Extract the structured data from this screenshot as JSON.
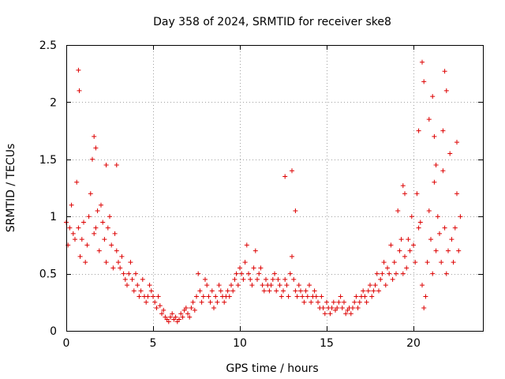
{
  "chart_data": {
    "type": "scatter",
    "title": "Day 358 of 2024, SRMTID for receiver ske8",
    "xlabel": "GPS time / hours",
    "ylabel": "SRMTID / TECUs",
    "xlim": [
      0,
      24
    ],
    "ylim": [
      0,
      2.5
    ],
    "xticks": [
      0,
      5,
      10,
      15,
      20
    ],
    "xtick_labels": [
      "0",
      "5",
      "10",
      "15",
      "20"
    ],
    "yticks": [
      0,
      0.5,
      1,
      1.5,
      2,
      2.5
    ],
    "ytick_labels": [
      "0",
      "0.5",
      "1",
      "1.5",
      "2",
      "2.5"
    ],
    "grid": true,
    "marker": "+",
    "color": "#dd0000",
    "series": [
      {
        "name": "SRMTID",
        "x": [
          0.0,
          0.1,
          0.2,
          0.3,
          0.4,
          0.5,
          0.6,
          0.7,
          0.8,
          0.9,
          1.0,
          1.1,
          1.2,
          1.3,
          1.4,
          1.5,
          1.6,
          1.7,
          1.8,
          1.9,
          2.0,
          2.1,
          2.2,
          2.3,
          2.4,
          2.5,
          2.6,
          2.7,
          2.8,
          2.9,
          3.0,
          3.1,
          3.2,
          3.3,
          3.4,
          3.5,
          3.6,
          3.7,
          3.8,
          3.9,
          4.0,
          4.1,
          4.2,
          4.3,
          4.4,
          4.5,
          4.6,
          4.7,
          4.8,
          4.9,
          5.0,
          5.1,
          5.2,
          5.3,
          5.4,
          5.5,
          5.6,
          5.7,
          5.8,
          5.9,
          6.0,
          6.1,
          6.2,
          6.3,
          6.4,
          6.5,
          6.6,
          6.7,
          6.8,
          6.9,
          7.0,
          7.1,
          7.2,
          7.3,
          7.4,
          7.5,
          7.6,
          7.7,
          7.8,
          7.9,
          8.0,
          8.1,
          8.2,
          8.3,
          8.4,
          8.5,
          8.6,
          8.7,
          8.8,
          8.9,
          9.0,
          9.1,
          9.2,
          9.3,
          9.4,
          9.5,
          9.6,
          9.7,
          9.8,
          9.9,
          10.0,
          10.1,
          10.2,
          10.3,
          10.4,
          10.5,
          10.6,
          10.7,
          10.8,
          10.9,
          11.0,
          11.1,
          11.2,
          11.3,
          11.4,
          11.5,
          11.6,
          11.7,
          11.8,
          11.9,
          12.0,
          12.1,
          12.2,
          12.3,
          12.4,
          12.5,
          12.6,
          12.7,
          12.8,
          12.9,
          13.0,
          13.1,
          13.2,
          13.3,
          13.4,
          13.5,
          13.6,
          13.7,
          13.8,
          13.9,
          14.0,
          14.1,
          14.2,
          14.3,
          14.4,
          14.5,
          14.6,
          14.7,
          14.8,
          14.9,
          15.0,
          15.1,
          15.2,
          15.3,
          15.4,
          15.5,
          15.6,
          15.7,
          15.8,
          15.9,
          16.0,
          16.1,
          16.2,
          16.3,
          16.4,
          16.5,
          16.6,
          16.7,
          16.8,
          16.9,
          17.0,
          17.1,
          17.2,
          17.3,
          17.4,
          17.5,
          17.6,
          17.7,
          17.8,
          17.9,
          18.0,
          18.1,
          18.2,
          18.3,
          18.4,
          18.5,
          18.6,
          18.7,
          18.8,
          18.9,
          19.0,
          19.1,
          19.2,
          19.3,
          19.4,
          19.5,
          19.6,
          19.7,
          19.8,
          19.9,
          20.0,
          20.1,
          20.2,
          20.3,
          20.4,
          20.5,
          20.6,
          20.7,
          20.8,
          20.9,
          21.0,
          21.1,
          21.2,
          21.3,
          21.4,
          21.5,
          21.6,
          21.7,
          21.8,
          21.9,
          22.0,
          22.1,
          22.2,
          22.3,
          22.4,
          22.5,
          22.6,
          22.7,
          0.7,
          0.75,
          1.6,
          1.7,
          2.3,
          2.9,
          13.0,
          13.2,
          12.6,
          19.4,
          19.5,
          20.3,
          20.5,
          20.6,
          20.9,
          21.1,
          21.2,
          21.3,
          21.7,
          21.8,
          21.9,
          22.5
        ],
        "y": [
          0.95,
          0.75,
          0.9,
          1.1,
          0.85,
          0.8,
          1.3,
          0.9,
          0.65,
          0.8,
          0.95,
          0.6,
          0.75,
          1.0,
          1.2,
          1.5,
          0.85,
          0.9,
          1.05,
          0.7,
          1.1,
          0.95,
          0.8,
          0.6,
          0.9,
          1.0,
          0.75,
          0.55,
          0.85,
          0.7,
          0.6,
          0.55,
          0.65,
          0.5,
          0.45,
          0.4,
          0.5,
          0.6,
          0.45,
          0.35,
          0.5,
          0.4,
          0.3,
          0.35,
          0.45,
          0.3,
          0.25,
          0.3,
          0.4,
          0.35,
          0.3,
          0.25,
          0.2,
          0.3,
          0.22,
          0.15,
          0.18,
          0.12,
          0.1,
          0.08,
          0.12,
          0.15,
          0.1,
          0.12,
          0.08,
          0.1,
          0.15,
          0.12,
          0.18,
          0.2,
          0.15,
          0.12,
          0.2,
          0.25,
          0.18,
          0.3,
          0.5,
          0.35,
          0.25,
          0.3,
          0.45,
          0.4,
          0.3,
          0.25,
          0.35,
          0.2,
          0.3,
          0.25,
          0.4,
          0.35,
          0.3,
          0.25,
          0.3,
          0.35,
          0.3,
          0.4,
          0.35,
          0.45,
          0.5,
          0.4,
          0.55,
          0.5,
          0.45,
          0.6,
          0.75,
          0.5,
          0.45,
          0.4,
          0.55,
          0.7,
          0.45,
          0.5,
          0.55,
          0.4,
          0.35,
          0.45,
          0.4,
          0.35,
          0.4,
          0.45,
          0.5,
          0.35,
          0.45,
          0.4,
          0.3,
          0.35,
          0.45,
          0.4,
          0.3,
          0.5,
          0.65,
          0.45,
          0.35,
          0.3,
          0.4,
          0.35,
          0.3,
          0.25,
          0.35,
          0.3,
          0.4,
          0.25,
          0.3,
          0.35,
          0.3,
          0.25,
          0.2,
          0.3,
          0.2,
          0.15,
          0.25,
          0.2,
          0.15,
          0.2,
          0.25,
          0.18,
          0.2,
          0.25,
          0.3,
          0.2,
          0.25,
          0.15,
          0.18,
          0.2,
          0.15,
          0.2,
          0.25,
          0.3,
          0.2,
          0.25,
          0.3,
          0.35,
          0.3,
          0.25,
          0.35,
          0.4,
          0.3,
          0.35,
          0.4,
          0.5,
          0.35,
          0.45,
          0.5,
          0.6,
          0.4,
          0.55,
          0.5,
          0.75,
          0.45,
          0.6,
          0.5,
          1.05,
          0.7,
          0.8,
          0.5,
          0.65,
          0.55,
          0.8,
          0.7,
          1.0,
          0.75,
          0.6,
          1.2,
          0.9,
          0.95,
          0.4,
          0.2,
          0.3,
          0.6,
          1.05,
          0.8,
          0.5,
          1.3,
          0.7,
          1.0,
          0.85,
          0.6,
          1.4,
          0.9,
          0.5,
          0.7,
          1.55,
          0.8,
          0.6,
          0.9,
          1.2,
          0.7,
          1.0,
          2.28,
          2.1,
          1.7,
          1.6,
          1.45,
          1.45,
          1.4,
          1.05,
          1.35,
          1.27,
          1.2,
          1.75,
          2.35,
          2.18,
          1.85,
          2.05,
          1.7,
          1.45,
          1.75,
          2.27,
          2.1,
          1.65
        ]
      }
    ]
  }
}
